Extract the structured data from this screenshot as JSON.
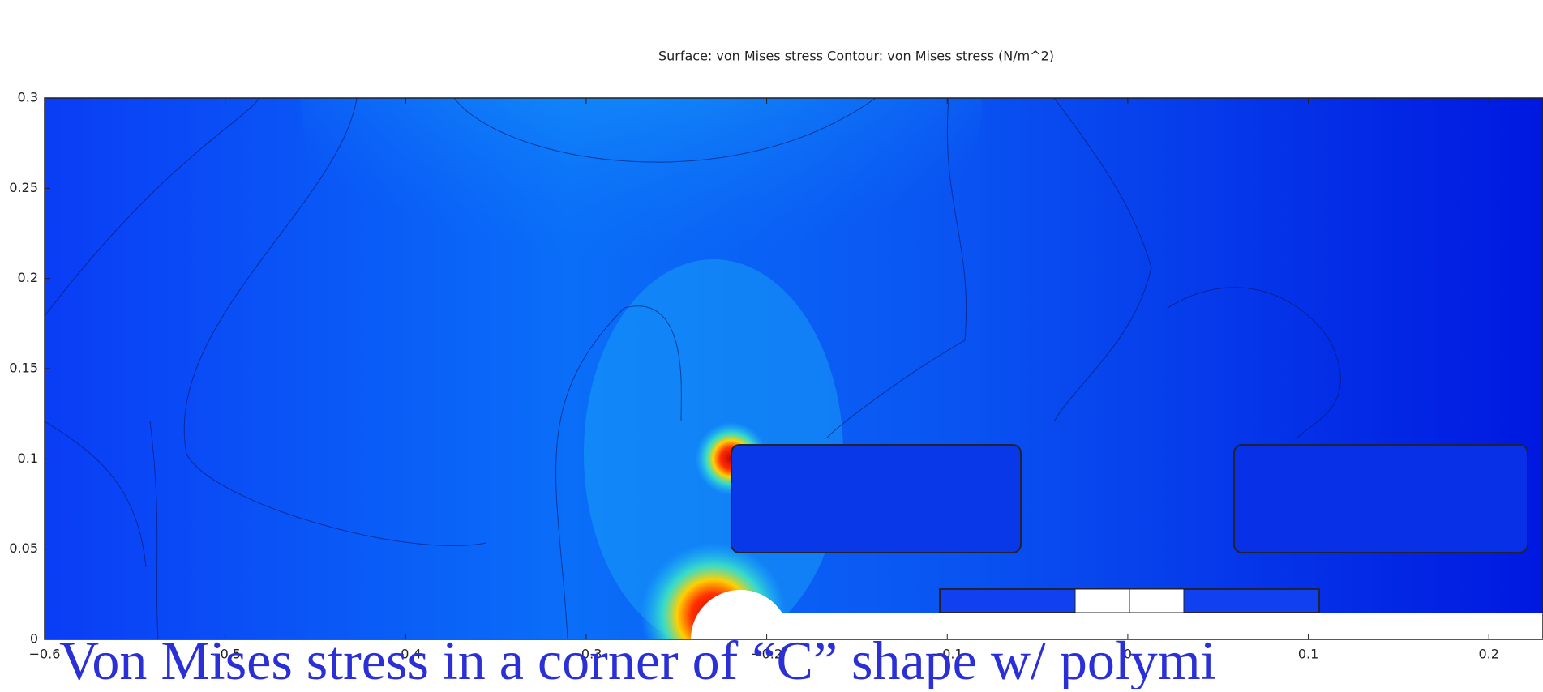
{
  "chart_data": {
    "type": "contour",
    "title": "Surface: von Mises stress Contour: von Mises stress (N/m^2)",
    "xlim": [
      -0.6,
      0.23
    ],
    "ylim": [
      0,
      0.3
    ],
    "xticks": [
      {
        "value": -0.6,
        "label": "−0.6"
      },
      {
        "value": -0.5,
        "label": "−0.5"
      },
      {
        "value": -0.4,
        "label": "−0.4"
      },
      {
        "value": -0.3,
        "label": "−0.3"
      },
      {
        "value": -0.2,
        "label": "−0.2"
      },
      {
        "value": -0.1,
        "label": "−0.1"
      },
      0,
      0.1,
      0.2
    ],
    "yticks": [
      0,
      0.05,
      0.1,
      0.15,
      0.2,
      0.25,
      0.3
    ]
  },
  "caption": "Von Mises stress in a corner of “C” shape w/ polymi"
}
